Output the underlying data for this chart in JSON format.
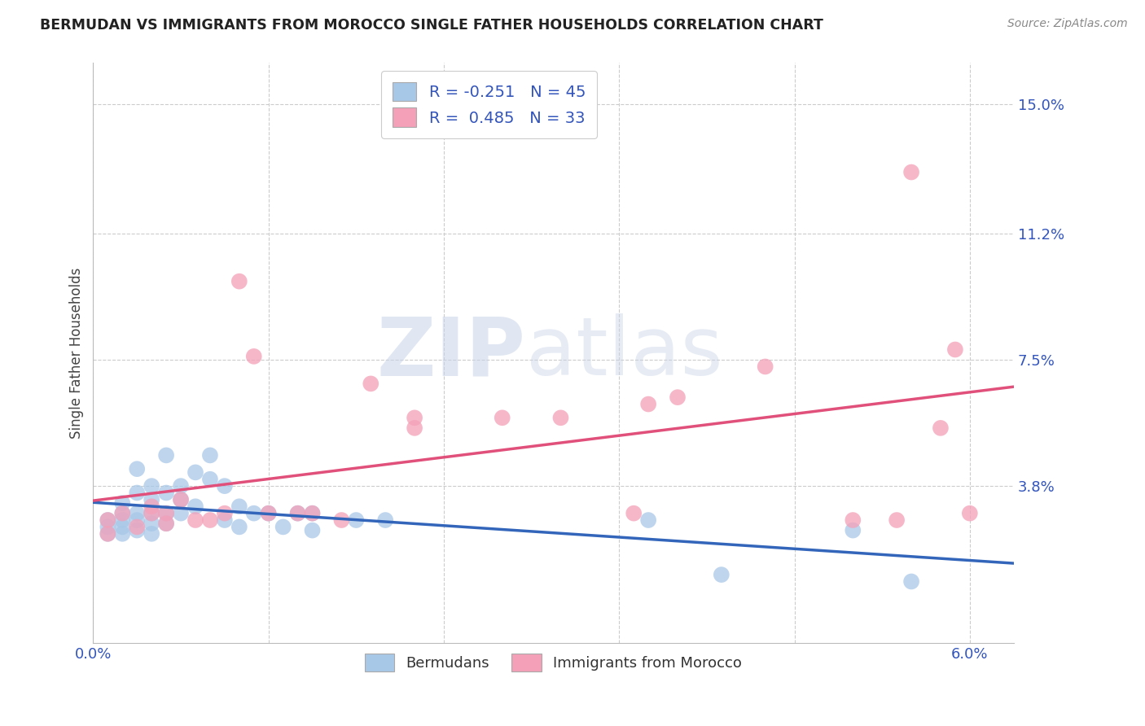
{
  "title": "BERMUDAN VS IMMIGRANTS FROM MOROCCO SINGLE FATHER HOUSEHOLDS CORRELATION CHART",
  "source": "Source: ZipAtlas.com",
  "ylabel_label": "Single Father Households",
  "xlim": [
    0.0,
    0.063
  ],
  "ylim": [
    -0.008,
    0.162
  ],
  "yticks": [
    0.038,
    0.075,
    0.112,
    0.15
  ],
  "ytick_labels": [
    "3.8%",
    "7.5%",
    "11.2%",
    "15.0%"
  ],
  "xticks": [
    0.0,
    0.06
  ],
  "xtick_labels": [
    "0.0%",
    "6.0%"
  ],
  "xticks_minor": [
    0.012,
    0.024,
    0.036,
    0.048
  ],
  "legend_labels": [
    "Bermudans",
    "Immigrants from Morocco"
  ],
  "R_blue": -0.251,
  "N_blue": 45,
  "R_pink": 0.485,
  "N_pink": 33,
  "blue_color": "#a8c8e8",
  "pink_color": "#f4a0b8",
  "blue_line_color": "#3366bb",
  "pink_line_color": "#e0507a",
  "watermark_zip": "ZIP",
  "watermark_atlas": "atlas",
  "blue_x": [
    0.001,
    0.001,
    0.001,
    0.002,
    0.002,
    0.002,
    0.002,
    0.002,
    0.003,
    0.003,
    0.003,
    0.003,
    0.003,
    0.004,
    0.004,
    0.004,
    0.004,
    0.004,
    0.005,
    0.005,
    0.005,
    0.005,
    0.006,
    0.006,
    0.006,
    0.007,
    0.007,
    0.008,
    0.008,
    0.009,
    0.009,
    0.01,
    0.01,
    0.011,
    0.012,
    0.013,
    0.014,
    0.015,
    0.015,
    0.018,
    0.02,
    0.038,
    0.043,
    0.052,
    0.056
  ],
  "blue_y": [
    0.028,
    0.026,
    0.024,
    0.033,
    0.03,
    0.028,
    0.026,
    0.024,
    0.043,
    0.036,
    0.03,
    0.028,
    0.025,
    0.038,
    0.034,
    0.03,
    0.027,
    0.024,
    0.047,
    0.036,
    0.03,
    0.027,
    0.038,
    0.034,
    0.03,
    0.042,
    0.032,
    0.047,
    0.04,
    0.038,
    0.028,
    0.032,
    0.026,
    0.03,
    0.03,
    0.026,
    0.03,
    0.03,
    0.025,
    0.028,
    0.028,
    0.028,
    0.012,
    0.025,
    0.01
  ],
  "pink_x": [
    0.001,
    0.001,
    0.002,
    0.003,
    0.004,
    0.004,
    0.005,
    0.005,
    0.006,
    0.007,
    0.008,
    0.009,
    0.01,
    0.011,
    0.012,
    0.014,
    0.015,
    0.017,
    0.019,
    0.022,
    0.022,
    0.028,
    0.032,
    0.037,
    0.038,
    0.04,
    0.046,
    0.052,
    0.055,
    0.056,
    0.058,
    0.059,
    0.06
  ],
  "pink_y": [
    0.028,
    0.024,
    0.03,
    0.026,
    0.032,
    0.03,
    0.03,
    0.027,
    0.034,
    0.028,
    0.028,
    0.03,
    0.098,
    0.076,
    0.03,
    0.03,
    0.03,
    0.028,
    0.068,
    0.058,
    0.055,
    0.058,
    0.058,
    0.03,
    0.062,
    0.064,
    0.073,
    0.028,
    0.028,
    0.13,
    0.055,
    0.078,
    0.03
  ]
}
